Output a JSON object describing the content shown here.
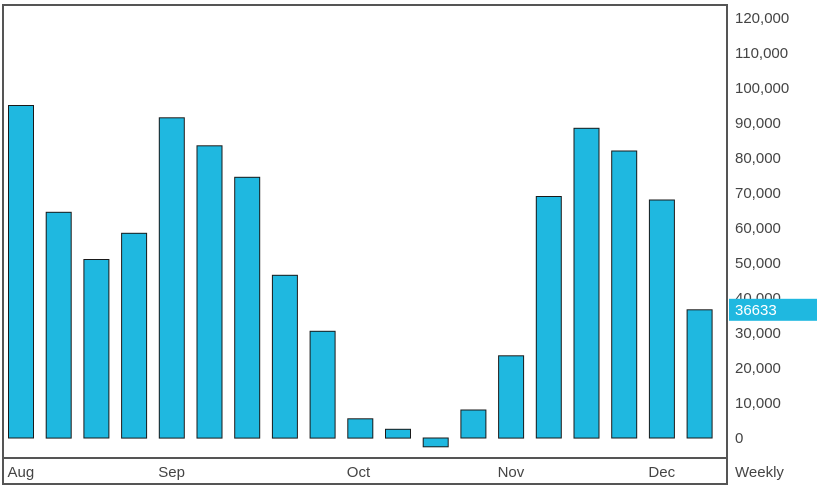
{
  "chart_data": {
    "type": "bar",
    "title": "",
    "xlabel": "",
    "ylabel": "",
    "frequency_label": "Weekly",
    "bar_color": "#1fb8e0",
    "bar_outline_color": "#1a1a1a",
    "values": [
      95000,
      64500,
      51000,
      58500,
      91500,
      83500,
      74500,
      46500,
      30500,
      5500,
      2500,
      -2500,
      8000,
      23500,
      69000,
      88500,
      82000,
      68000,
      36633
    ],
    "month_labels": [
      {
        "label": "Aug",
        "bar_index": 0
      },
      {
        "label": "Sep",
        "bar_index": 4
      },
      {
        "label": "Oct",
        "bar_index": 9
      },
      {
        "label": "Nov",
        "bar_index": 13
      },
      {
        "label": "Dec",
        "bar_index": 17
      }
    ],
    "y_ticks": [
      "0",
      "10,000",
      "20,000",
      "30,000",
      "40,000",
      "50,000",
      "60,000",
      "70,000",
      "80,000",
      "90,000",
      "100,000",
      "110,000",
      "120,000"
    ],
    "ylim": [
      -3000,
      120000
    ],
    "last_value_label": "36633",
    "last_value_color": "#1fb8e0",
    "grid": false,
    "legend": "none"
  }
}
